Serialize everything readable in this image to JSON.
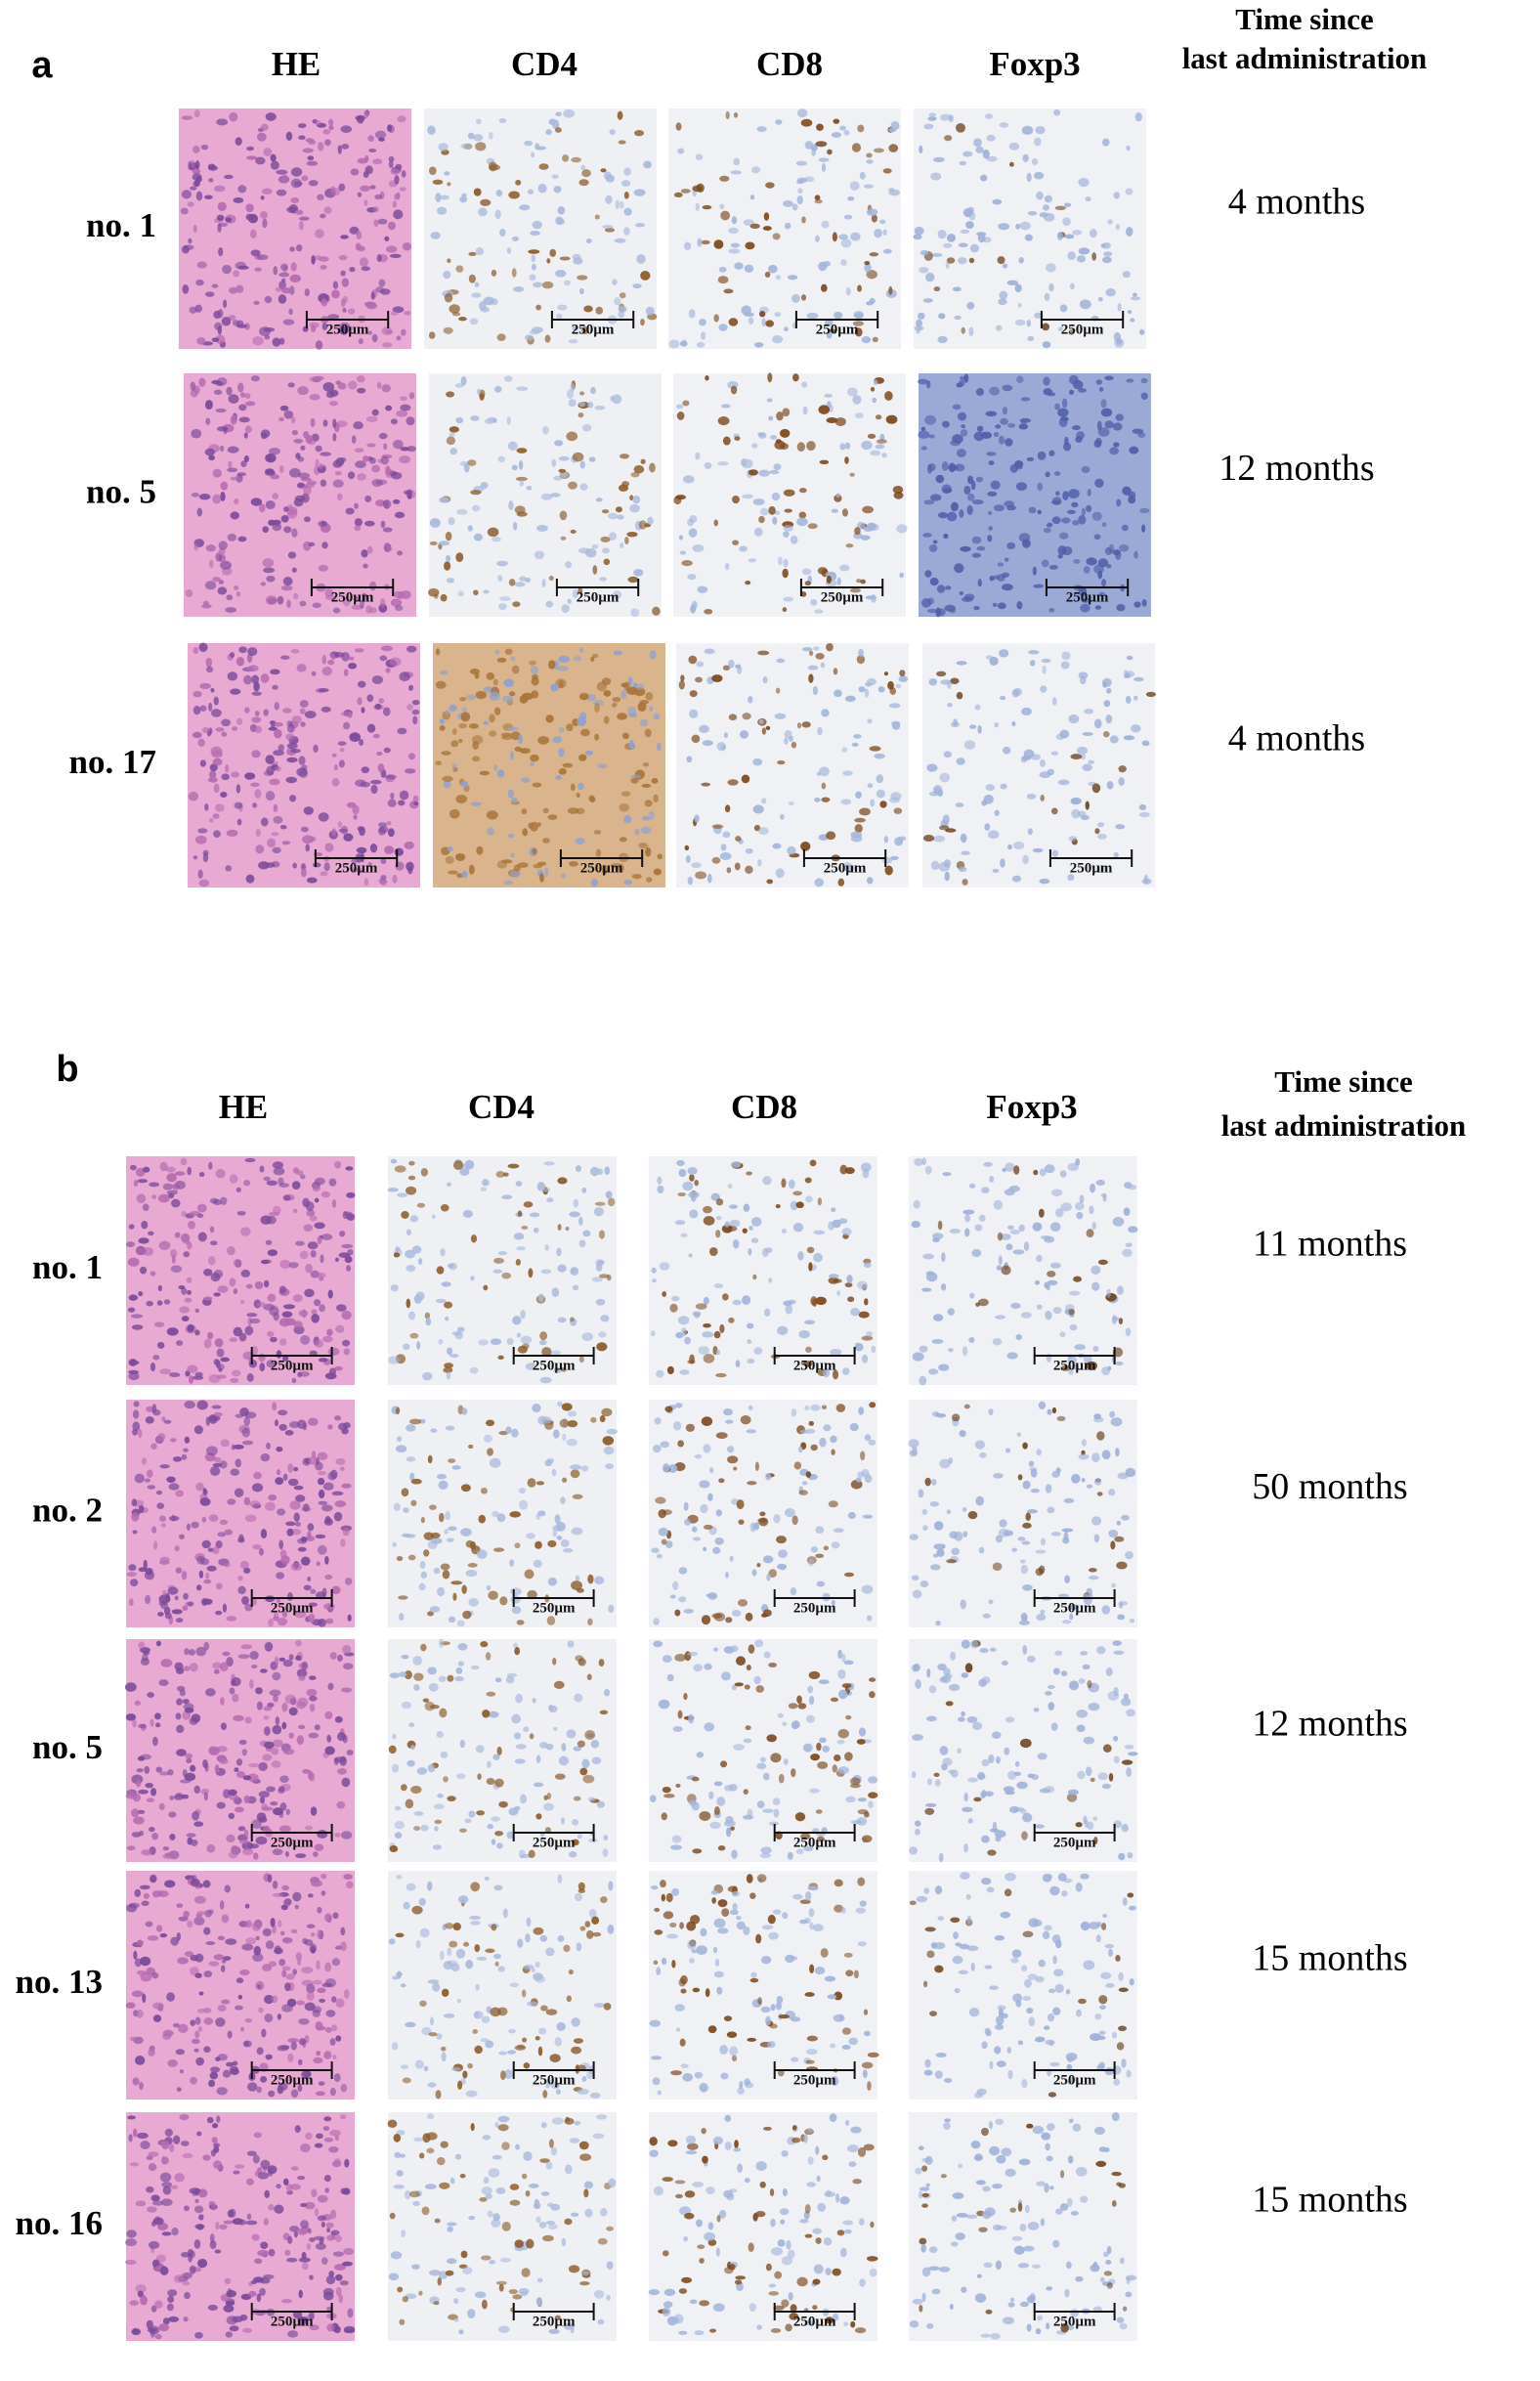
{
  "panels": [
    {
      "label": "a",
      "columns": [
        "HE",
        "CD4",
        "CD8",
        "Foxp3"
      ],
      "time_header": [
        "Time since",
        "last administration"
      ],
      "scale_bar": "250µm",
      "rows": [
        {
          "label": "no. 1",
          "time": "4 months"
        },
        {
          "label": "no. 5",
          "time": "12 months"
        },
        {
          "label": "no. 17",
          "time": "4 months"
        }
      ]
    },
    {
      "label": "b",
      "columns": [
        "HE",
        "CD4",
        "CD8",
        "Foxp3"
      ],
      "time_header": [
        "Time since",
        "last administration"
      ],
      "scale_bar": "250µm",
      "rows": [
        {
          "label": "no. 1",
          "time": "11 months"
        },
        {
          "label": "no. 2",
          "time": "50 months"
        },
        {
          "label": "no. 5",
          "time": "12 months"
        },
        {
          "label": "no. 13",
          "time": "15 months"
        },
        {
          "label": "no. 16",
          "time": "15 months"
        }
      ]
    }
  ]
}
